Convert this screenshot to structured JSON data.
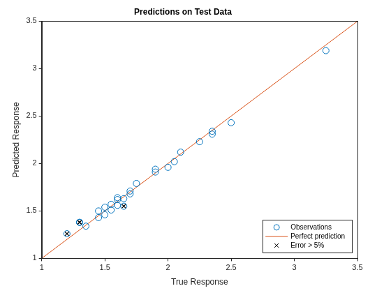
{
  "chart_data": {
    "type": "scatter",
    "title": "Predictions on Test Data",
    "x_label": "True Response",
    "y_label": "Predicted Response",
    "xlim": [
      1,
      3.5
    ],
    "ylim": [
      1,
      3.5
    ],
    "xticks": [
      1,
      1.5,
      2,
      2.5,
      3,
      3.5
    ],
    "yticks": [
      1,
      1.5,
      2,
      2.5,
      3,
      3.5
    ],
    "grid": false,
    "legend": "bottom-right",
    "series": [
      {
        "name": "Observations",
        "color": "#0072bd",
        "marker": "circle",
        "x": [
          1.2,
          1.3,
          1.3,
          1.35,
          1.45,
          1.45,
          1.5,
          1.5,
          1.55,
          1.55,
          1.6,
          1.6,
          1.6,
          1.65,
          1.65,
          1.7,
          1.7,
          1.75,
          1.9,
          1.9,
          2.0,
          2.05,
          2.1,
          2.25,
          2.35,
          2.35,
          2.5,
          3.25
        ],
        "values": [
          1.26,
          1.38,
          1.38,
          1.34,
          1.43,
          1.5,
          1.46,
          1.54,
          1.51,
          1.57,
          1.56,
          1.62,
          1.64,
          1.55,
          1.63,
          1.68,
          1.71,
          1.79,
          1.91,
          1.94,
          1.96,
          2.02,
          2.12,
          2.23,
          2.31,
          2.34,
          2.43,
          3.19
        ]
      },
      {
        "name": "Perfect prediction",
        "color": "#d95319",
        "type": "line",
        "marker": "none",
        "line_style": "solid",
        "x": [
          1,
          3.5
        ],
        "values": [
          1,
          3.5
        ]
      },
      {
        "name": "Error > 5%",
        "color": "#000000",
        "marker": "x",
        "x": [
          1.2,
          1.3,
          1.3,
          1.65
        ],
        "values": [
          1.26,
          1.38,
          1.38,
          1.55
        ]
      }
    ]
  }
}
